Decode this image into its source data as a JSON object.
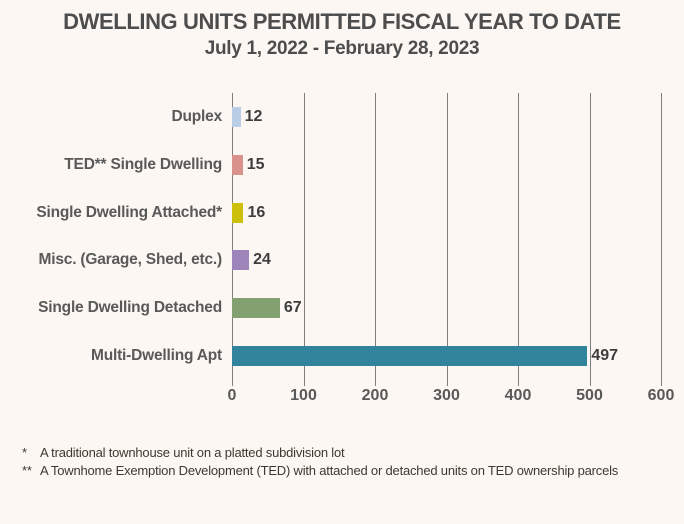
{
  "title": {
    "line1": "DWELLING UNITS PERMITTED FISCAL YEAR TO DATE",
    "line2": "July 1, 2022 - February 28, 2023"
  },
  "chart_data": {
    "type": "bar",
    "orientation": "horizontal",
    "title": "DWELLING UNITS PERMITTED FISCAL YEAR TO DATE",
    "subtitle": "July 1, 2022 - February 28, 2023",
    "categories": [
      "Duplex",
      "TED** Single Dwelling",
      "Single Dwelling Attached*",
      "Misc. (Garage, Shed, etc.)",
      "Single Dwelling Detached",
      "Multi-Dwelling Apt"
    ],
    "values": [
      12,
      15,
      16,
      24,
      67,
      497
    ],
    "bar_colors": [
      "#b9cde5",
      "#d9938c",
      "#cdc00a",
      "#9e86bb",
      "#83a06f",
      "#31849b"
    ],
    "value_labels": [
      "12",
      "15",
      "16",
      "24",
      "67",
      "497"
    ],
    "x_ticks": [
      0,
      100,
      200,
      300,
      400,
      500,
      600
    ],
    "xlim": [
      0,
      600
    ],
    "xlabel": "",
    "ylabel": "",
    "grid": true,
    "legend": false
  },
  "footnotes": [
    {
      "marker": "*",
      "text": "A traditional townhouse unit on a platted subdivision lot"
    },
    {
      "marker": "**",
      "text": "A Townhome Exemption Development (TED) with attached or detached units on TED ownership parcels"
    }
  ],
  "colors": {
    "background": "#fcf7f2",
    "title_text": "#4d4d4d",
    "category_text": "#595959",
    "value_text": "#3d3d3d",
    "axis_text": "#595959",
    "gridline": "#7f7f7f",
    "footnote_text": "#3f3830"
  }
}
